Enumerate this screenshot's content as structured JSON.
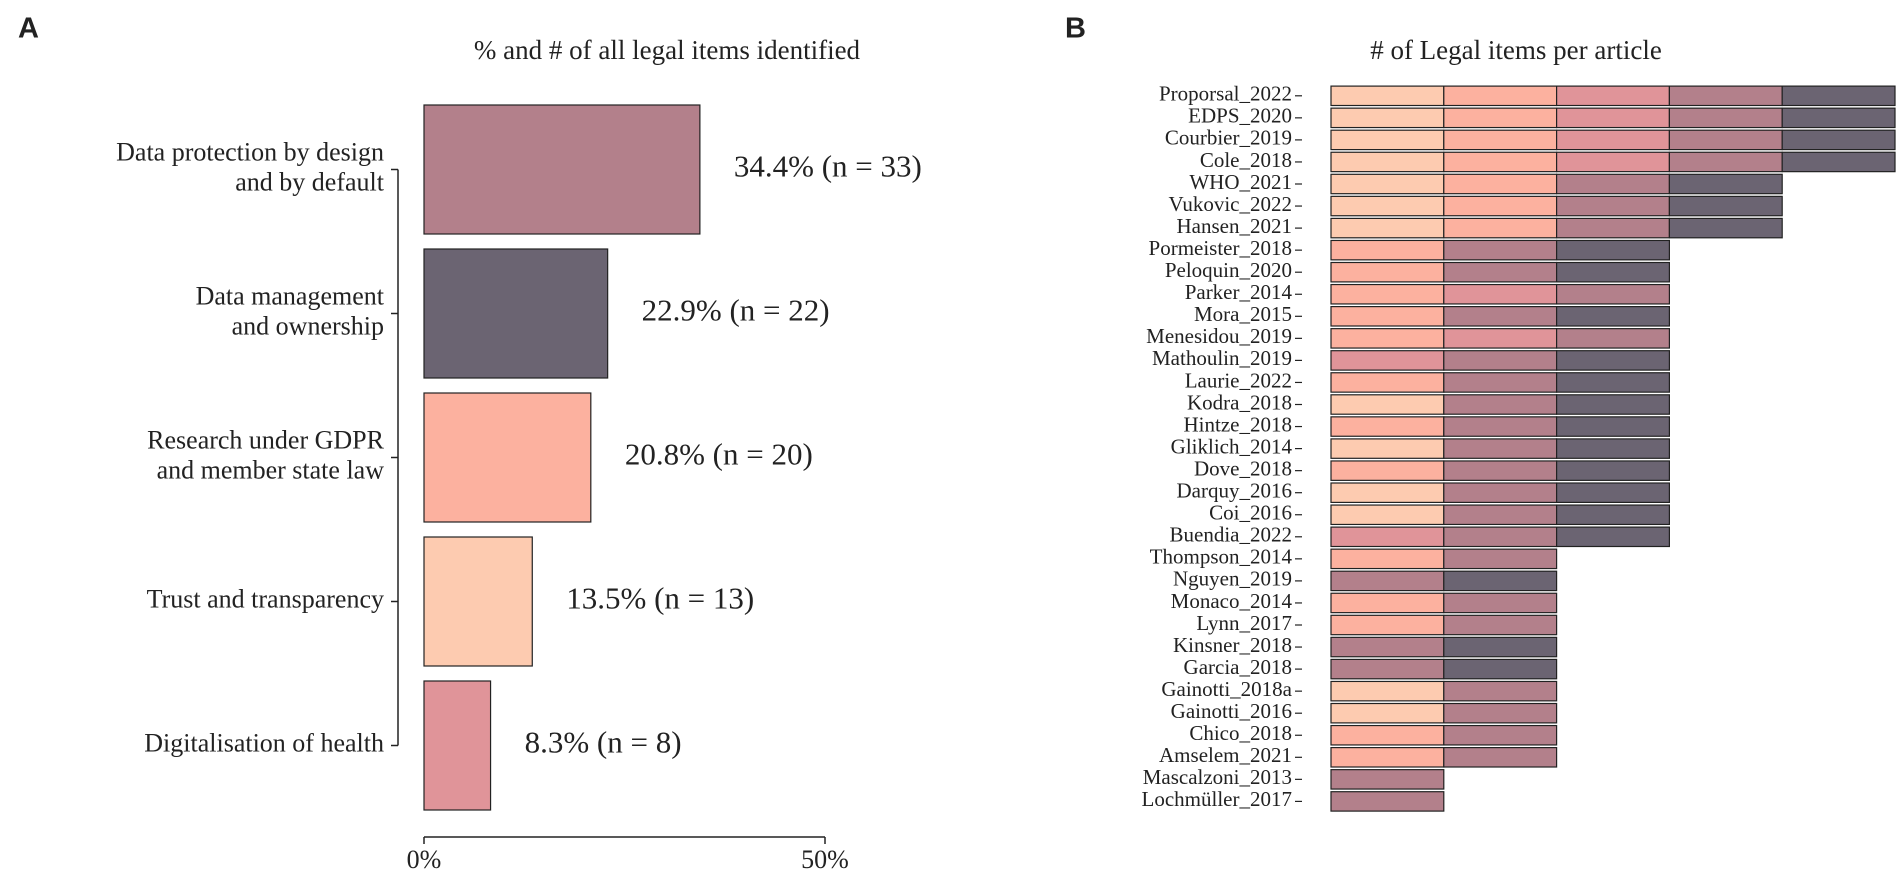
{
  "chart_data": [
    {
      "type": "bar",
      "orientation": "horizontal",
      "panel_label": "A",
      "title": "% and # of all legal items identified",
      "categories": [
        [
          "Data protection by design",
          "and by default"
        ],
        [
          "Data management",
          "and ownership"
        ],
        [
          "Research under GDPR",
          "and member state law"
        ],
        [
          "Trust and transparency"
        ],
        [
          "Digitalisation of health"
        ]
      ],
      "values": [
        34.4,
        22.9,
        20.8,
        13.5,
        8.3
      ],
      "value_labels": [
        "34.4% (n = 33)",
        "22.9% (n = 22)",
        "20.8% (n = 20)",
        "13.5% (n = 13)",
        "8.3% (n = 8)"
      ],
      "colors": [
        "#b3808b",
        "#6b6472",
        "#fcb19f",
        "#fdcbb0",
        "#e09499"
      ],
      "xlim": [
        0,
        50
      ],
      "xticks": [
        {
          "value": 0,
          "label": "0%"
        },
        {
          "value": 50,
          "label": "50%"
        }
      ]
    },
    {
      "type": "stacked_bar",
      "orientation": "horizontal",
      "panel_label": "B",
      "title": "# of Legal items per article",
      "categories": [
        "Proporsal_2022",
        "EDPS_2020",
        "Courbier_2019",
        "Cole_2018",
        "WHO_2021",
        "Vukovic_2022",
        "Hansen_2021",
        "Pormeister_2018",
        "Peloquin_2020",
        "Parker_2014",
        "Mora_2015",
        "Menesidou_2019",
        "Mathoulin_2019",
        "Laurie_2022",
        "Kodra_2018",
        "Hintze_2018",
        "Gliklich_2014",
        "Dove_2018",
        "Darquy_2016",
        "Coi_2016",
        "Buendia_2022",
        "Thompson_2014",
        "Nguyen_2019",
        "Monaco_2014",
        "Lynn_2017",
        "Kinsner_2018",
        "Garcia_2018",
        "Gainotti_2018a",
        "Gainotti_2016",
        "Chico_2018",
        "Amselem_2021",
        "Mascalzoni_2013",
        "Lochmüller_2017"
      ],
      "series": [
        {
          "color": "#fdcbb0",
          "values": [
            1,
            1,
            1,
            1,
            1,
            1,
            1,
            0,
            0,
            0,
            0,
            0,
            0,
            0,
            1,
            0,
            1,
            0,
            1,
            1,
            0,
            0,
            0,
            0,
            0,
            0,
            0,
            1,
            1,
            0,
            0,
            0,
            0
          ]
        },
        {
          "color": "#fcb19f",
          "values": [
            1,
            1,
            1,
            1,
            1,
            1,
            1,
            1,
            1,
            1,
            1,
            1,
            0,
            1,
            0,
            1,
            0,
            1,
            0,
            0,
            0,
            1,
            0,
            1,
            1,
            0,
            0,
            0,
            0,
            1,
            1,
            0,
            0
          ]
        },
        {
          "color": "#e09499",
          "values": [
            1,
            1,
            1,
            1,
            0,
            0,
            0,
            0,
            0,
            1,
            0,
            1,
            1,
            0,
            0,
            0,
            0,
            0,
            0,
            0,
            1,
            0,
            0,
            0,
            0,
            0,
            0,
            0,
            0,
            0,
            0,
            0,
            0
          ]
        },
        {
          "color": "#b3808b",
          "values": [
            1,
            1,
            1,
            1,
            1,
            1,
            1,
            1,
            1,
            1,
            1,
            1,
            1,
            1,
            1,
            1,
            1,
            1,
            1,
            1,
            1,
            1,
            1,
            1,
            1,
            1,
            1,
            1,
            1,
            1,
            1,
            1,
            1
          ]
        },
        {
          "color": "#6b6472",
          "values": [
            1,
            1,
            1,
            1,
            1,
            1,
            1,
            1,
            1,
            0,
            1,
            0,
            1,
            1,
            1,
            1,
            1,
            1,
            1,
            1,
            1,
            0,
            1,
            0,
            0,
            1,
            1,
            0,
            0,
            0,
            0,
            0,
            0
          ]
        }
      ]
    }
  ]
}
